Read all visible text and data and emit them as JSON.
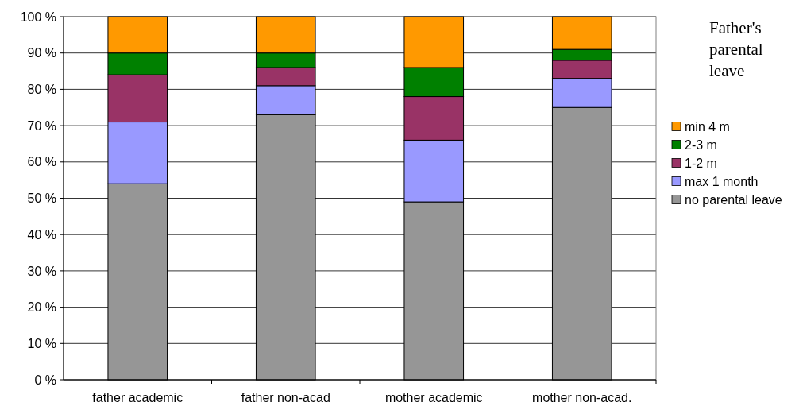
{
  "chart_data": {
    "type": "bar",
    "title": "Father's parental leave",
    "stacked": true,
    "categories": [
      "father academic",
      "father non-acad",
      "mother academic",
      "mother non-acad."
    ],
    "series": [
      {
        "name": "no parental leave",
        "color": "#969696",
        "values": [
          54,
          73,
          49,
          75
        ]
      },
      {
        "name": "max 1 month",
        "color": "#9999ff",
        "values": [
          17,
          8,
          17,
          8
        ]
      },
      {
        "name": "1-2 m",
        "color": "#993366",
        "values": [
          13,
          5,
          12,
          5
        ]
      },
      {
        "name": "2-3 m",
        "color": "#008000",
        "values": [
          6,
          4,
          8,
          3
        ]
      },
      {
        "name": "min 4 m",
        "color": "#ff9900",
        "values": [
          10,
          10,
          14,
          9
        ]
      }
    ],
    "ylim": [
      0,
      100
    ],
    "yticks": [
      {
        "value": 0,
        "label": "0 %"
      },
      {
        "value": 10,
        "label": "10 %"
      },
      {
        "value": 20,
        "label": "20 %"
      },
      {
        "value": 30,
        "label": "30 %"
      },
      {
        "value": 40,
        "label": "40 %"
      },
      {
        "value": 50,
        "label": "50 %"
      },
      {
        "value": 60,
        "label": "60 %"
      },
      {
        "value": 70,
        "label": "70 %"
      },
      {
        "value": 80,
        "label": "80 %"
      },
      {
        "value": 90,
        "label": "90 %"
      },
      {
        "value": 100,
        "label": "100 %"
      }
    ],
    "grid": "y",
    "legend": "right"
  }
}
